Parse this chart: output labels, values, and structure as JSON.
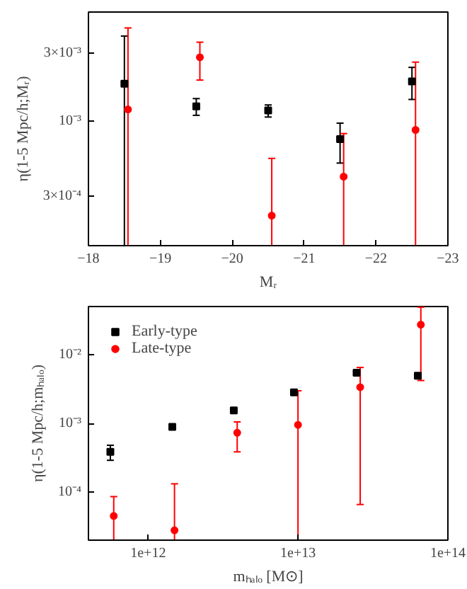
{
  "chart_data": [
    {
      "type": "scatter",
      "xlabel": "Mᵣ",
      "ylabel": "η(1-5 Mpc/h;Mᵣ)",
      "log": "y",
      "grid": false,
      "legend": false,
      "xlim": [
        -18,
        -23
      ],
      "xticks": [
        -18,
        -19,
        -20,
        -21,
        -22,
        -23
      ],
      "ylim": [
        0.000135,
        0.0058
      ],
      "yticks": [
        {
          "value": 0.0003,
          "label": "3×10⁻⁴"
        },
        {
          "value": 0.001,
          "label": "10⁻³"
        },
        {
          "value": 0.003,
          "label": "3×10⁻³"
        }
      ],
      "series": [
        {
          "color": "#000000",
          "marker": "square",
          "x": [
            -18.5,
            -19.5,
            -20.5,
            -21.5,
            -22.5
          ],
          "values": [
            0.00183,
            0.00127,
            0.00119,
            0.00075,
            0.0019
          ],
          "errors": [
            [
              0.000135,
              0.00394
            ],
            [
              0.0011,
              0.00144
            ],
            [
              0.00107,
              0.0013
            ],
            [
              0.00051,
              0.00097
            ],
            [
              0.00142,
              0.00238
            ]
          ]
        },
        {
          "color": "#ff0000",
          "marker": "circle",
          "x": [
            -18.55,
            -19.55,
            -20.55,
            -21.55,
            -22.55
          ],
          "values": [
            0.00121,
            0.0028,
            0.000219,
            0.00041,
            0.00087
          ],
          "errors": [
            [
              0.000135,
              0.00449
            ],
            [
              0.00194,
              0.00357
            ],
            [
              0.000135,
              0.00055
            ],
            [
              0.000135,
              0.00082
            ],
            [
              0.000135,
              0.00259
            ]
          ]
        }
      ]
    },
    {
      "type": "scatter",
      "xlabel": "mₕₐₗₒ [M⊙]",
      "ylabel": "η(1-5 Mpc/h;mₕₐₗₒ)",
      "log": "xy",
      "grid": false,
      "legend": "top left",
      "xlim": [
        400000000000.0,
        100000000000000.0
      ],
      "xticks": [
        {
          "value": 1000000000000.0,
          "label": "1e+12"
        },
        {
          "value": 10000000000000.0,
          "label": "1e+13"
        },
        {
          "value": 100000000000000.0,
          "label": "1e+14"
        }
      ],
      "ylim": [
        2e-05,
        0.05
      ],
      "yticks": [
        {
          "value": 0.0001,
          "label": "10⁻⁴"
        },
        {
          "value": 0.001,
          "label": "10⁻³"
        },
        {
          "value": 0.01,
          "label": "10⁻²"
        }
      ],
      "series": [
        {
          "name": "Early-type",
          "color": "#000000",
          "marker": "square",
          "x": [
            560000000000.0,
            1450000000000.0,
            3730000000000.0,
            9400000000000.0,
            24600000000000.0,
            63000000000000.0
          ],
          "values": [
            0.000385,
            0.00089,
            0.00154,
            0.00282,
            0.00545,
            0.00492
          ],
          "errors": [
            [
              0.00029,
              0.00048
            ],
            null,
            null,
            null,
            null,
            null
          ]
        },
        {
          "name": "Late-type",
          "color": "#ff0000",
          "marker": "circle",
          "x": [
            590000000000.0,
            1500000000000.0,
            3930000000000.0,
            10000000000000.0,
            26000000000000.0,
            66000000000000.0
          ],
          "values": [
            4.5e-05,
            2.78e-05,
            0.00073,
            0.00095,
            0.00336,
            0.0273
          ],
          "errors": [
            [
              2e-05,
              8.6e-05
            ],
            [
              2e-05,
              0.000132
            ],
            [
              0.000385,
              0.00105
            ],
            [
              2e-05,
              0.00298
            ],
            [
              6.6e-05,
              0.0065
            ],
            [
              0.0042,
              0.049
            ]
          ]
        }
      ]
    }
  ]
}
